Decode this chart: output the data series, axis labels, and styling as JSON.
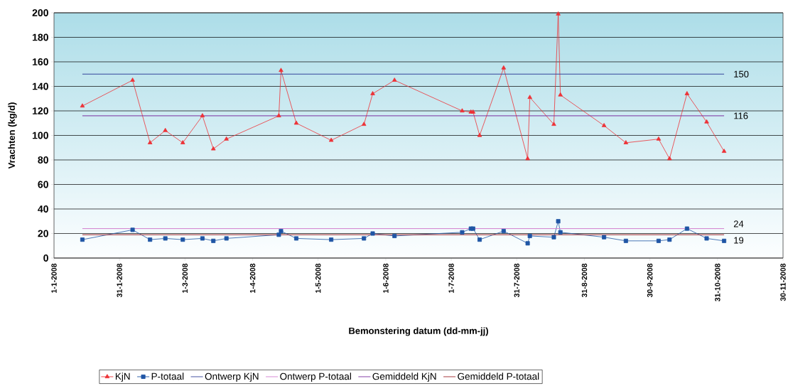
{
  "chart_data": {
    "type": "line",
    "ylabel": "Vrachten (kg/d)",
    "xlabel": "Bemonstering datum (dd-mm-jj)",
    "xlim": [
      "2008-01-01",
      "2008-11-30"
    ],
    "xticks": [
      {
        "value": "2008-01-01",
        "label": "1-1-2008"
      },
      {
        "value": "2008-01-31",
        "label": "31-1-2008"
      },
      {
        "value": "2008-03-01",
        "label": "1-3-2008"
      },
      {
        "value": "2008-04-01",
        "label": "1-4-2008"
      },
      {
        "value": "2008-05-01",
        "label": "1-5-2008"
      },
      {
        "value": "2008-06-01",
        "label": "1-6-2008"
      },
      {
        "value": "2008-07-01",
        "label": "1-7-2008"
      },
      {
        "value": "2008-07-31",
        "label": "31-7-2008"
      },
      {
        "value": "2008-08-31",
        "label": "31-8-2008"
      },
      {
        "value": "2008-09-30",
        "label": "30-9-2008"
      },
      {
        "value": "2008-10-31",
        "label": "31-10-2008"
      },
      {
        "value": "2008-11-30",
        "label": "30-11-2008"
      }
    ],
    "ylim": [
      0,
      200
    ],
    "yticks": [
      0,
      20,
      40,
      60,
      80,
      100,
      120,
      140,
      160,
      180,
      200
    ],
    "grid": "y",
    "legend": "bottom",
    "series": [
      {
        "name": "KjN",
        "color": "#ed3237",
        "marker": "triangle",
        "line_style": "solid",
        "x": [
          "2008-01-14",
          "2008-02-06",
          "2008-02-14",
          "2008-02-21",
          "2008-02-29",
          "2008-03-09",
          "2008-03-14",
          "2008-03-20",
          "2008-04-13",
          "2008-04-14",
          "2008-04-21",
          "2008-05-07",
          "2008-05-22",
          "2008-05-26",
          "2008-06-05",
          "2008-07-06",
          "2008-07-10",
          "2008-07-11",
          "2008-07-14",
          "2008-07-25",
          "2008-08-05",
          "2008-08-06",
          "2008-08-17",
          "2008-08-19",
          "2008-08-20",
          "2008-09-09",
          "2008-09-19",
          "2008-10-04",
          "2008-10-09",
          "2008-10-17",
          "2008-10-26",
          "2008-11-03"
        ],
        "values": [
          124,
          145,
          94,
          104,
          94,
          116,
          89,
          97,
          116,
          153,
          110,
          96,
          109,
          134,
          145,
          120,
          119,
          119,
          100,
          155,
          81,
          131,
          109,
          199,
          133,
          108,
          94,
          97,
          81,
          134,
          111,
          87
        ]
      },
      {
        "name": "P-totaal",
        "color": "#1f55a5",
        "marker": "square",
        "line_style": "solid",
        "x": [
          "2008-01-14",
          "2008-02-06",
          "2008-02-14",
          "2008-02-21",
          "2008-02-29",
          "2008-03-09",
          "2008-03-14",
          "2008-03-20",
          "2008-04-13",
          "2008-04-14",
          "2008-04-21",
          "2008-05-07",
          "2008-05-22",
          "2008-05-26",
          "2008-06-05",
          "2008-07-06",
          "2008-07-10",
          "2008-07-11",
          "2008-07-14",
          "2008-07-25",
          "2008-08-05",
          "2008-08-06",
          "2008-08-17",
          "2008-08-19",
          "2008-08-20",
          "2008-09-09",
          "2008-09-19",
          "2008-10-04",
          "2008-10-09",
          "2008-10-17",
          "2008-10-26",
          "2008-11-03"
        ],
        "values": [
          15,
          23,
          15,
          16,
          15,
          16,
          14,
          16,
          19,
          22,
          16,
          15,
          16,
          20,
          18,
          21,
          24,
          24,
          15,
          22,
          12,
          18,
          17,
          30,
          21,
          17,
          14,
          14,
          15,
          24,
          16,
          14
        ]
      },
      {
        "name": "Ontwerp KjN",
        "color": "#34449a",
        "marker": "none",
        "line_style": "solid",
        "x": [
          "2008-01-14",
          "2008-11-03"
        ],
        "values": [
          150,
          150
        ],
        "value_labels": [
          null,
          "150"
        ]
      },
      {
        "name": "Ontwerp P-totaal",
        "color": "#d27fd0",
        "marker": "none",
        "line_style": "solid",
        "x": [
          "2008-01-14",
          "2008-11-03"
        ],
        "values": [
          24,
          24
        ],
        "value_labels": [
          null,
          "24"
        ]
      },
      {
        "name": "Gemiddeld KjN",
        "color": "#7b2fa0",
        "marker": "none",
        "line_style": "solid",
        "x": [
          "2008-01-14",
          "2008-11-03"
        ],
        "values": [
          116,
          116
        ],
        "value_labels": [
          null,
          "116"
        ]
      },
      {
        "name": "Gemiddeld P-totaal",
        "color": "#a0282d",
        "marker": "none",
        "line_style": "solid",
        "x": [
          "2008-01-14",
          "2008-11-03"
        ],
        "values": [
          19,
          19
        ],
        "value_labels": [
          null,
          "19"
        ]
      }
    ]
  }
}
